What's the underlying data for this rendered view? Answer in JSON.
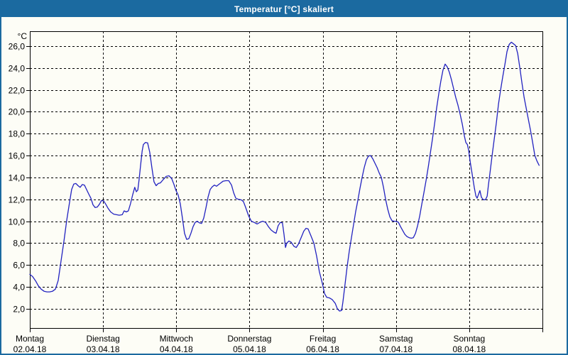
{
  "window": {
    "title": "Temperatur [°C] skaliert"
  },
  "colors": {
    "titlebar_bg": "#1b6aa0",
    "window_border": "#1b6aa0",
    "background": "#fdfdf6",
    "axis": "#000000",
    "grid": "#000000",
    "text": "#000000",
    "line": "#2222c0"
  },
  "chart_data": {
    "type": "line",
    "title": "Temperatur [°C] skaliert",
    "unit_label": "°C",
    "legend": "none",
    "grid": "dashed",
    "y_axis": {
      "min": 0.25,
      "max": 27.35,
      "tick_values": [
        26,
        24,
        22,
        20,
        18,
        16,
        14,
        12,
        10,
        8,
        6,
        4,
        2
      ],
      "tick_labels": [
        "26,0",
        "24,0",
        "22,0",
        "20,0",
        "18,0",
        "16,0",
        "14,0",
        "12,0",
        "10,0",
        "8,0",
        "6,0",
        "4,0",
        "2,0"
      ]
    },
    "x_axis": {
      "hours_total": 168,
      "day_start_hours": [
        0,
        24,
        48,
        72,
        96,
        120,
        144
      ],
      "day_labels": [
        {
          "name": "Montag",
          "date": "02.04.18"
        },
        {
          "name": "Dienstag",
          "date": "03.04.18"
        },
        {
          "name": "Mittwoch",
          "date": "04.04.18"
        },
        {
          "name": "Donnerstag",
          "date": "05.04.18"
        },
        {
          "name": "Freitag",
          "date": "06.04.18"
        },
        {
          "name": "Samstag",
          "date": "07.04.18"
        },
        {
          "name": "Sonntag",
          "date": "08.04.18"
        }
      ]
    },
    "series": [
      {
        "name": "Temperatur",
        "color": "#2222c0",
        "points_hours_temp": [
          [
            0,
            5.15
          ],
          [
            0.9,
            4.95
          ],
          [
            1.9,
            4.55
          ],
          [
            2.8,
            4.1
          ],
          [
            3.7,
            3.8
          ],
          [
            4.7,
            3.6
          ],
          [
            5.6,
            3.55
          ],
          [
            6.5,
            3.55
          ],
          [
            7.4,
            3.6
          ],
          [
            8.4,
            3.8
          ],
          [
            9.3,
            4.6
          ],
          [
            10.2,
            6.3
          ],
          [
            11.2,
            8.2
          ],
          [
            12.1,
            10.1
          ],
          [
            13,
            11.7
          ],
          [
            13.7,
            12.9
          ],
          [
            14.4,
            13.4
          ],
          [
            15.1,
            13.45
          ],
          [
            15.8,
            13.25
          ],
          [
            16.5,
            13.1
          ],
          [
            17.2,
            13.35
          ],
          [
            17.9,
            13.3
          ],
          [
            18.6,
            12.9
          ],
          [
            19.3,
            12.5
          ],
          [
            20,
            12.1
          ],
          [
            20.7,
            11.5
          ],
          [
            21.4,
            11.25
          ],
          [
            22.1,
            11.3
          ],
          [
            22.8,
            11.55
          ],
          [
            23.5,
            11.9
          ],
          [
            24.2,
            11.85
          ],
          [
            24.9,
            11.55
          ],
          [
            25.6,
            11.2
          ],
          [
            26.5,
            10.85
          ],
          [
            27.5,
            10.65
          ],
          [
            28.4,
            10.6
          ],
          [
            29.3,
            10.55
          ],
          [
            30.3,
            10.6
          ],
          [
            30.9,
            10.95
          ],
          [
            31.6,
            10.85
          ],
          [
            32.3,
            10.95
          ],
          [
            33,
            11.6
          ],
          [
            33.7,
            12.4
          ],
          [
            34.4,
            13.1
          ],
          [
            34.9,
            12.7
          ],
          [
            35.4,
            12.85
          ],
          [
            35.8,
            13.8
          ],
          [
            36.3,
            15.1
          ],
          [
            36.8,
            16.4
          ],
          [
            37.2,
            17
          ],
          [
            37.9,
            17.2
          ],
          [
            38.6,
            17.15
          ],
          [
            39.3,
            16.3
          ],
          [
            40,
            14.9
          ],
          [
            40.7,
            13.6
          ],
          [
            41.4,
            13.25
          ],
          [
            42.1,
            13.45
          ],
          [
            42.8,
            13.5
          ],
          [
            43.7,
            13.8
          ],
          [
            44.7,
            14.1
          ],
          [
            45.6,
            14.15
          ],
          [
            46.5,
            13.9
          ],
          [
            47.2,
            13.4
          ],
          [
            47.9,
            12.8
          ],
          [
            48.6,
            12.4
          ],
          [
            49.3,
            11.6
          ],
          [
            50,
            10.3
          ],
          [
            50.7,
            8.9
          ],
          [
            51.4,
            8.35
          ],
          [
            52.1,
            8.4
          ],
          [
            52.8,
            8.9
          ],
          [
            53.5,
            9.5
          ],
          [
            54.2,
            9.9
          ],
          [
            54.9,
            10
          ],
          [
            55.6,
            9.85
          ],
          [
            56.3,
            9.8
          ],
          [
            57,
            10.3
          ],
          [
            57.7,
            11.2
          ],
          [
            58.4,
            12.2
          ],
          [
            59.1,
            12.9
          ],
          [
            59.8,
            13.15
          ],
          [
            60.5,
            13.3
          ],
          [
            61.2,
            13.2
          ],
          [
            61.9,
            13.35
          ],
          [
            62.6,
            13.5
          ],
          [
            63.3,
            13.65
          ],
          [
            64.2,
            13.7
          ],
          [
            65.2,
            13.7
          ],
          [
            66.1,
            13.3
          ],
          [
            66.8,
            12.6
          ],
          [
            67.5,
            12.1
          ],
          [
            68.4,
            12
          ],
          [
            69.3,
            11.95
          ],
          [
            70,
            11.8
          ],
          [
            70.7,
            11.3
          ],
          [
            71.7,
            10.5
          ],
          [
            72.6,
            10
          ],
          [
            73.5,
            9.9
          ],
          [
            74.5,
            9.75
          ],
          [
            75.4,
            9.9
          ],
          [
            76.3,
            10
          ],
          [
            77.3,
            9.9
          ],
          [
            78.2,
            9.5
          ],
          [
            79.1,
            9.2
          ],
          [
            80,
            9
          ],
          [
            80.7,
            8.9
          ],
          [
            81.4,
            9.6
          ],
          [
            82.1,
            9.9
          ],
          [
            82.8,
            9.85
          ],
          [
            83.3,
            8.8
          ],
          [
            83.8,
            7.6
          ],
          [
            84.2,
            8
          ],
          [
            84.9,
            8.2
          ],
          [
            85.6,
            8.1
          ],
          [
            86.6,
            7.7
          ],
          [
            87.3,
            7.6
          ],
          [
            88,
            7.9
          ],
          [
            88.9,
            8.5
          ],
          [
            89.8,
            9.1
          ],
          [
            90.5,
            9.35
          ],
          [
            91.2,
            9.3
          ],
          [
            92.1,
            8.7
          ],
          [
            93.1,
            8
          ],
          [
            94,
            6.8
          ],
          [
            94.9,
            5.4
          ],
          [
            95.9,
            4.3
          ],
          [
            96.6,
            3.4
          ],
          [
            97.3,
            3.05
          ],
          [
            98.2,
            3
          ],
          [
            99.1,
            2.85
          ],
          [
            100.1,
            2.5
          ],
          [
            100.8,
            2
          ],
          [
            101.5,
            1.8
          ],
          [
            102.2,
            1.85
          ],
          [
            102.6,
            2.6
          ],
          [
            103.3,
            4.2
          ],
          [
            104,
            5.9
          ],
          [
            104.7,
            7.3
          ],
          [
            105.4,
            8.5
          ],
          [
            106.1,
            9.7
          ],
          [
            106.8,
            10.9
          ],
          [
            107.5,
            11.9
          ],
          [
            108.2,
            13
          ],
          [
            108.9,
            14
          ],
          [
            109.6,
            14.9
          ],
          [
            110.3,
            15.6
          ],
          [
            111,
            15.95
          ],
          [
            111.7,
            16
          ],
          [
            112.4,
            15.7
          ],
          [
            113.1,
            15.3
          ],
          [
            113.8,
            14.9
          ],
          [
            114.5,
            14.4
          ],
          [
            115.2,
            14
          ],
          [
            115.9,
            13.1
          ],
          [
            116.6,
            12
          ],
          [
            117.3,
            11.1
          ],
          [
            118,
            10.4
          ],
          [
            118.7,
            10.05
          ],
          [
            119.4,
            10
          ],
          [
            120.1,
            10
          ],
          [
            120.8,
            9.9
          ],
          [
            121.5,
            9.5
          ],
          [
            122.2,
            9.15
          ],
          [
            122.9,
            8.8
          ],
          [
            123.6,
            8.6
          ],
          [
            124.3,
            8.5
          ],
          [
            125,
            8.45
          ],
          [
            125.7,
            8.5
          ],
          [
            126.4,
            8.9
          ],
          [
            127.1,
            9.6
          ],
          [
            127.8,
            10.5
          ],
          [
            128.5,
            11.6
          ],
          [
            129.2,
            12.7
          ],
          [
            129.9,
            13.8
          ],
          [
            130.6,
            15
          ],
          [
            131.3,
            16.3
          ],
          [
            132,
            17.6
          ],
          [
            132.7,
            19
          ],
          [
            133.3,
            20.3
          ],
          [
            134,
            21.6
          ],
          [
            134.7,
            22.8
          ],
          [
            135.4,
            23.8
          ],
          [
            136.1,
            24.35
          ],
          [
            136.8,
            24.1
          ],
          [
            137.5,
            23.6
          ],
          [
            138.2,
            22.9
          ],
          [
            138.9,
            22.1
          ],
          [
            139.6,
            21.3
          ],
          [
            140.3,
            20.6
          ],
          [
            141,
            19.8
          ],
          [
            141.7,
            18.9
          ],
          [
            142.4,
            17.8
          ],
          [
            142.9,
            17.2
          ],
          [
            143.4,
            17
          ],
          [
            143.8,
            16.5
          ],
          [
            144.3,
            15.5
          ],
          [
            144.8,
            14.6
          ],
          [
            145.2,
            13.9
          ],
          [
            145.7,
            13
          ],
          [
            146.2,
            12.3
          ],
          [
            146.6,
            12.1
          ],
          [
            147.1,
            12.5
          ],
          [
            147.5,
            12.8
          ],
          [
            148,
            12.2
          ],
          [
            148.5,
            12
          ],
          [
            148.9,
            11.95
          ],
          [
            149.4,
            12
          ],
          [
            149.9,
            12.3
          ],
          [
            150.3,
            13.3
          ],
          [
            150.8,
            14.4
          ],
          [
            151.5,
            16
          ],
          [
            152.2,
            17.5
          ],
          [
            152.9,
            19
          ],
          [
            153.6,
            20.7
          ],
          [
            154.3,
            22
          ],
          [
            155,
            23.2
          ],
          [
            155.7,
            24.3
          ],
          [
            156.4,
            25.5
          ],
          [
            157.1,
            26.15
          ],
          [
            157.8,
            26.35
          ],
          [
            158.5,
            26.2
          ],
          [
            159.2,
            26.05
          ],
          [
            159.9,
            25.3
          ],
          [
            160.6,
            24
          ],
          [
            161.3,
            22.6
          ],
          [
            162,
            21.3
          ],
          [
            162.7,
            20.3
          ],
          [
            163.4,
            19.3
          ],
          [
            164.1,
            18.3
          ],
          [
            164.8,
            17.2
          ],
          [
            165.5,
            16
          ],
          [
            166.2,
            15.5
          ],
          [
            166.9,
            15.1
          ]
        ]
      }
    ]
  }
}
